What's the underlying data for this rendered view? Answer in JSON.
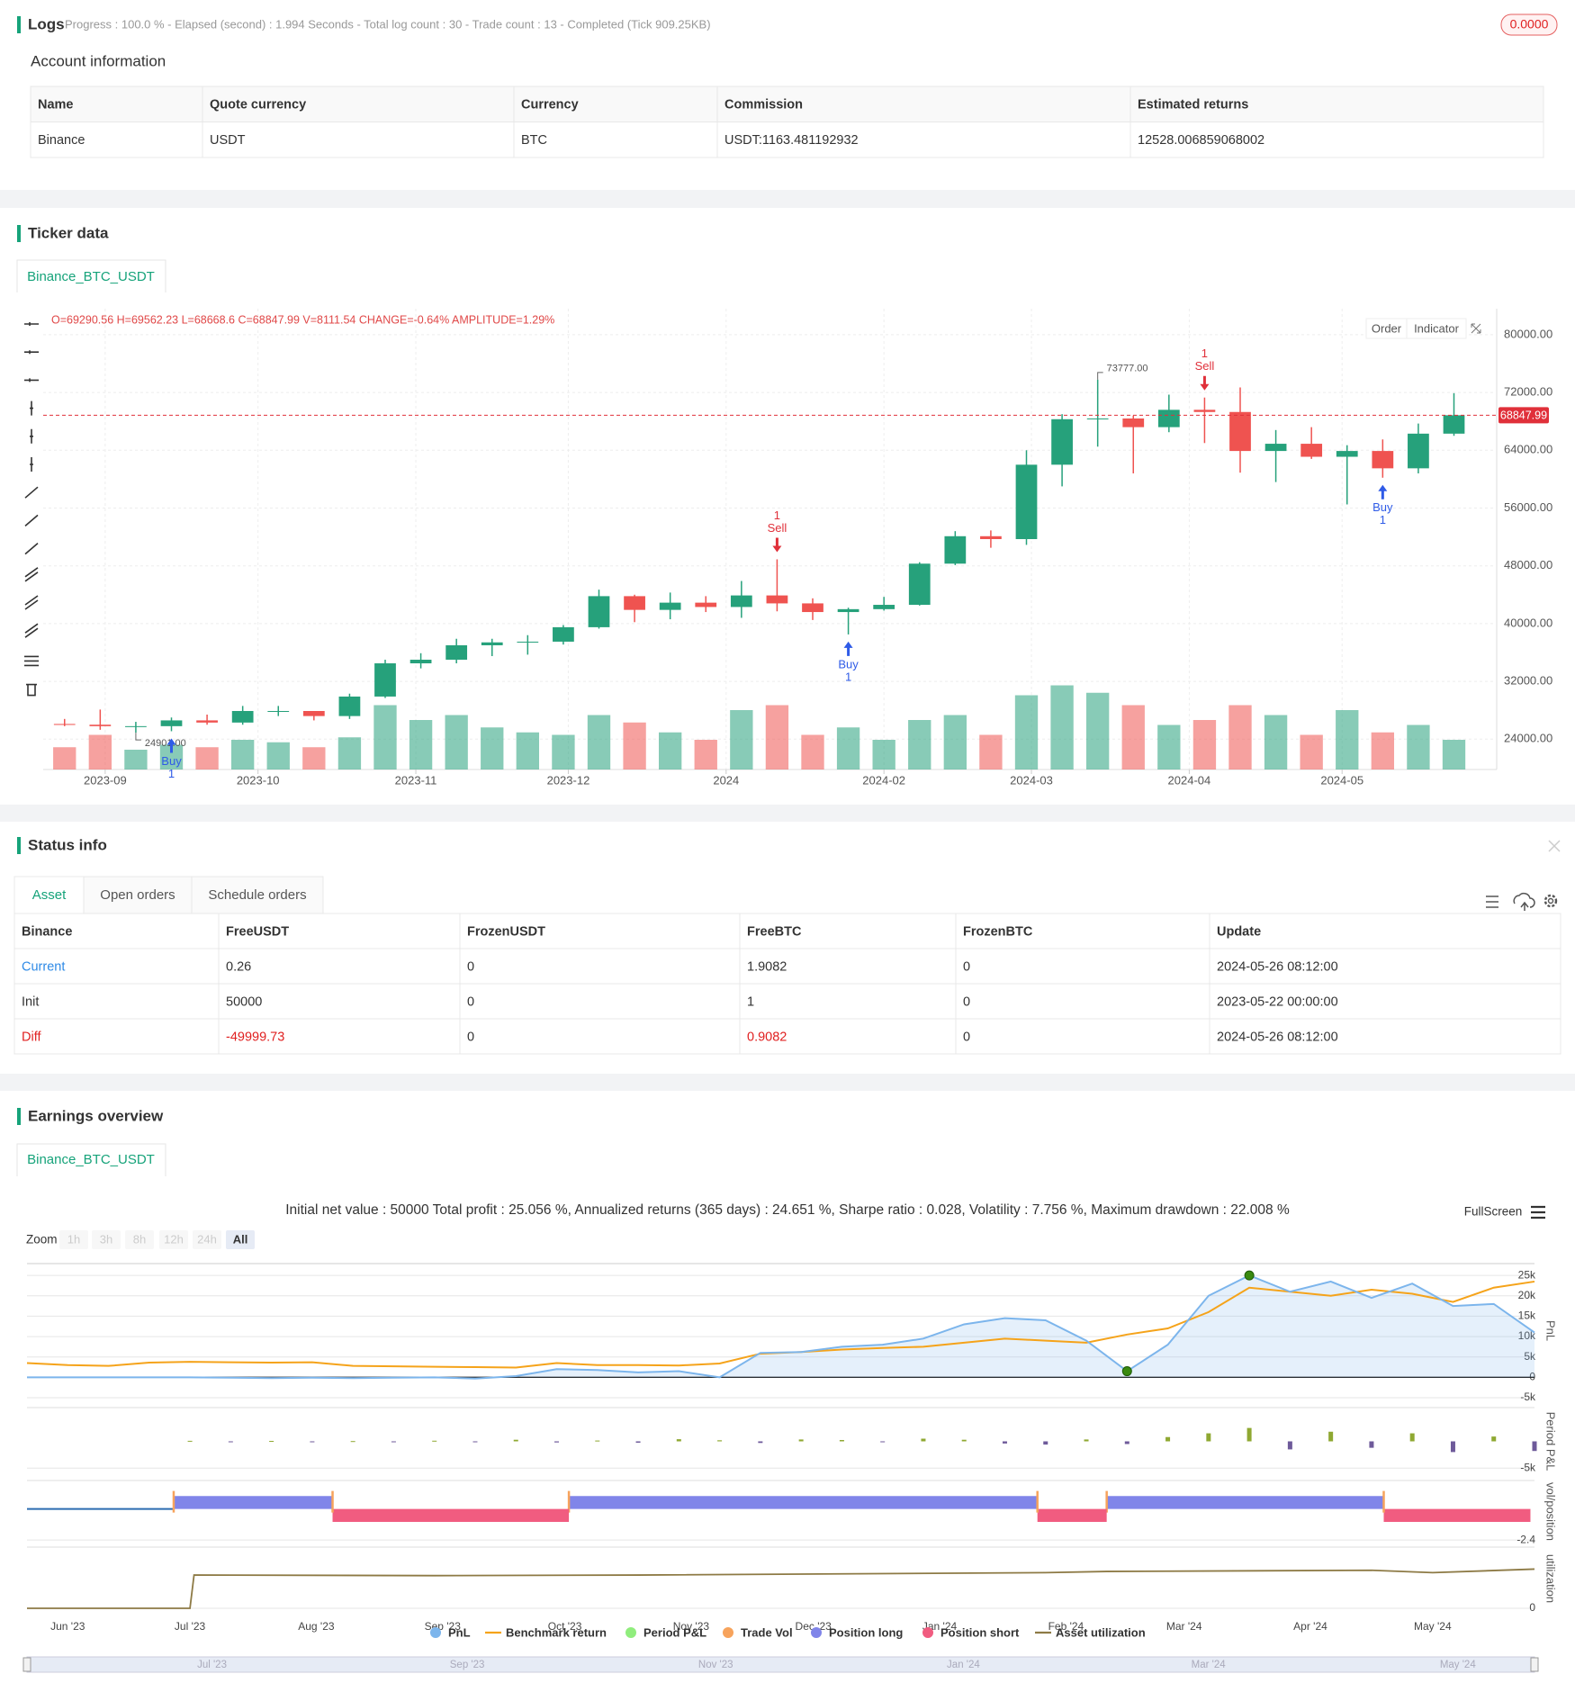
{
  "logs": {
    "title": "Logs",
    "progress": "Progress : 100.0 % - Elapsed (second) : 1.994  Seconds - Total log count : 30 - Trade count : 13 - Completed (Tick 909.25KB)",
    "badge": "0.0000"
  },
  "account": {
    "title": "Account information",
    "columns": [
      "Name",
      "Quote currency",
      "Currency",
      "Commission",
      "Estimated returns"
    ],
    "rows": [
      [
        "Binance",
        "USDT",
        "BTC",
        "USDT:1163.481192932",
        "12528.006859068002"
      ]
    ]
  },
  "ticker": {
    "title": "Ticker data",
    "tab": "Binance_BTC_USDT",
    "buttons": [
      "Order",
      "Indicator"
    ]
  },
  "status": {
    "title": "Status info",
    "tabs": [
      "Asset",
      "Open orders",
      "Schedule orders"
    ],
    "columns": [
      "Binance",
      "FreeUSDT",
      "FrozenUSDT",
      "FreeBTC",
      "FrozenBTC",
      "Update"
    ],
    "rows": [
      [
        "Current",
        "0.26",
        "0",
        "1.9082",
        "0",
        "2024-05-26 08:12:00"
      ],
      [
        "Init",
        "50000",
        "0",
        "1",
        "0",
        "2023-05-22 00:00:00"
      ],
      [
        "Diff",
        "-49999.73",
        "0",
        "0.9082",
        "0",
        "2024-05-26 08:12:00"
      ]
    ]
  },
  "earnings": {
    "title": "Earnings overview",
    "tab": "Binance_BTC_USDT",
    "summary": "Initial net value : 50000 Total profit : 25.056 %, Annualized returns (365 days) : 24.651 %, Sharpe ratio : 0.028, Volatility : 7.756 %, Maximum drawdown : 22.008 %",
    "fullscreen": "FullScreen",
    "zoom": {
      "label": "Zoom",
      "buttons": [
        "1h",
        "3h",
        "8h",
        "12h",
        "24h",
        "All"
      ],
      "active": "All"
    },
    "navigator": [
      {
        "value": 40,
        "label": "Jul '23"
      },
      {
        "value": 102,
        "label": "Sep '23"
      },
      {
        "value": 163,
        "label": "Nov '23"
      },
      {
        "value": 224,
        "label": "Jan '24"
      },
      {
        "value": 284,
        "label": "Mar '24"
      },
      {
        "value": 345,
        "label": "May '24"
      }
    ]
  },
  "chart_data": [
    {
      "type": "candlestick",
      "info": "O=69290.56 H=69562.23 L=68668.6 C=68847.99 V=8111.54 CHANGE=-0.64% AMPLITUDE=1.29%",
      "categories": [
        null,
        null,
        null,
        null,
        null,
        null,
        null,
        null,
        null,
        null,
        null,
        null,
        null,
        null,
        null,
        null,
        null,
        null,
        null,
        null,
        null,
        null,
        null,
        null,
        null,
        null,
        null,
        null,
        null,
        null,
        null,
        null,
        null,
        null,
        null,
        null,
        null,
        null,
        null,
        null
      ],
      "open": [
        26100,
        26000,
        25800,
        25800,
        26600,
        26300,
        27900,
        27900,
        27200,
        29900,
        34500,
        35000,
        37000,
        37400,
        37500,
        39500,
        43800,
        41900,
        42900,
        42300,
        43900,
        42800,
        41600,
        42000,
        42600,
        48300,
        52100,
        51700,
        62000,
        68300,
        68400,
        67200,
        69600,
        69300,
        63900,
        64900,
        63100,
        63900,
        61500,
        66300
      ],
      "high": [
        26800,
        28100,
        26400,
        27000,
        27400,
        28600,
        28600,
        27900,
        30300,
        35000,
        35900,
        37900,
        37900,
        38400,
        39800,
        44700,
        44000,
        44300,
        43800,
        45900,
        48900,
        43500,
        42200,
        43700,
        48500,
        52800,
        52900,
        64000,
        69000,
        73777,
        68800,
        71700,
        71300,
        72700,
        66800,
        67200,
        64700,
        65500,
        67700,
        71900
      ],
      "low": [
        25800,
        25300,
        24901,
        25100,
        26000,
        26000,
        27200,
        26600,
        26800,
        29700,
        33800,
        34500,
        35500,
        35700,
        37100,
        39300,
        40200,
        40600,
        41600,
        40800,
        41700,
        40500,
        38500,
        41800,
        42500,
        48100,
        50500,
        50900,
        59000,
        64500,
        60800,
        66500,
        65000,
        60900,
        59600,
        62800,
        56500,
        60200,
        60800,
        66000
      ],
      "close": [
        26000,
        25800,
        25800,
        26600,
        26300,
        27900,
        27900,
        27200,
        29900,
        34500,
        35000,
        37000,
        37400,
        37500,
        39500,
        43800,
        41900,
        42900,
        42300,
        43900,
        42800,
        41600,
        42000,
        42600,
        48300,
        52100,
        51700,
        62000,
        68300,
        68400,
        67200,
        69600,
        69300,
        63900,
        64900,
        63100,
        63900,
        61500,
        66300,
        68848
      ],
      "volume": [
        9000,
        14000,
        8000,
        10000,
        9000,
        12000,
        11000,
        9000,
        13000,
        26000,
        20000,
        22000,
        17000,
        15000,
        14000,
        22000,
        19000,
        15000,
        12000,
        24000,
        26000,
        14000,
        17000,
        12000,
        20000,
        22000,
        14000,
        30000,
        34000,
        31000,
        26000,
        18000,
        20000,
        26000,
        22000,
        14000,
        24000,
        15000,
        18000,
        12000
      ],
      "volume_lim": [
        0,
        40000
      ],
      "up_color": "#26a17b",
      "down_color": "#ef5350",
      "xlim": [
        -0.6,
        40.2
      ],
      "xticks": [
        {
          "value": 1.14,
          "label": "2023-09"
        },
        {
          "value": 5.43,
          "label": "2023-10"
        },
        {
          "value": 9.86,
          "label": "2023-11"
        },
        {
          "value": 14.14,
          "label": "2023-12"
        },
        {
          "value": 18.57,
          "label": "2024"
        },
        {
          "value": 23,
          "label": "2024-02"
        },
        {
          "value": 27.14,
          "label": "2024-03"
        },
        {
          "value": 31.57,
          "label": "2024-04"
        },
        {
          "value": 35.86,
          "label": "2024-05"
        }
      ],
      "ylim": [
        19800,
        83600
      ],
      "yticks": [
        {
          "value": 24000,
          "label": "24000.00"
        },
        {
          "value": 32000,
          "label": "32000.00"
        },
        {
          "value": 40000,
          "label": "40000.00"
        },
        {
          "value": 48000,
          "label": "48000.00"
        },
        {
          "value": 56000,
          "label": "56000.00"
        },
        {
          "value": 64000,
          "label": "64000.00"
        },
        {
          "value": 72000,
          "label": "72000.00"
        },
        {
          "value": 80000,
          "label": "80000.00"
        }
      ],
      "grid": true,
      "last_price": {
        "value": 68847.99,
        "label": "68847.99"
      },
      "max_label": {
        "value": 73777,
        "label": "73777.00",
        "candle": 29
      },
      "min_label": {
        "value": 24901,
        "label": "24901.00",
        "candle": 2
      },
      "trades": [
        {
          "side": "Buy",
          "qty": 1,
          "candle": 3
        },
        {
          "side": "Sell",
          "qty": 1,
          "candle": 20
        },
        {
          "side": "Buy",
          "qty": 1,
          "candle": 22
        },
        {
          "side": "Sell",
          "qty": 1,
          "candle": 32
        },
        {
          "side": "Buy",
          "qty": 1,
          "candle": 37
        }
      ],
      "buy_color": "#2f5be7",
      "sell_color": "#e0303a"
    },
    {
      "type": "line",
      "ylabel": "PnL",
      "x": [
        0,
        10,
        20,
        30,
        40,
        50,
        60,
        70,
        80,
        90,
        100,
        110,
        120,
        130,
        140,
        150,
        160,
        170,
        180,
        190,
        200,
        210,
        220,
        230,
        240,
        250,
        260,
        270,
        280,
        290,
        300,
        310,
        320,
        330,
        340,
        350,
        360,
        370
      ],
      "series": [
        {
          "name": "PnL",
          "color": "#7cb5ec",
          "values": [
            0,
            0,
            0,
            0,
            0,
            -100,
            -200,
            -100,
            -200,
            -100,
            0,
            -300,
            300,
            2000,
            1800,
            1200,
            1500,
            0,
            6000,
            6200,
            7500,
            8000,
            9500,
            13000,
            14500,
            14000,
            9000,
            1500,
            8000,
            20000,
            25000,
            21000,
            23500,
            19500,
            23000,
            17500,
            18000,
            11000
          ]
        },
        {
          "name": "Benchmark return",
          "color": "#f5a31a",
          "values": [
            3500,
            3000,
            2800,
            3600,
            3800,
            3700,
            3600,
            3700,
            2800,
            2700,
            2600,
            2500,
            2400,
            3500,
            3000,
            3000,
            2900,
            3400,
            5800,
            6200,
            6800,
            7200,
            7500,
            8500,
            9500,
            9000,
            8500,
            10500,
            12000,
            16000,
            22000,
            21000,
            20000,
            21500,
            20500,
            18500,
            22000,
            23500
          ]
        }
      ],
      "xlim": [
        0,
        370
      ],
      "xticks": [
        {
          "value": 10,
          "label": "Jun '23"
        },
        {
          "value": 40,
          "label": "Jul '23"
        },
        {
          "value": 71,
          "label": "Aug '23"
        },
        {
          "value": 102,
          "label": "Sep '23"
        },
        {
          "value": 132,
          "label": "Oct '23"
        },
        {
          "value": 163,
          "label": "Nov '23"
        },
        {
          "value": 193,
          "label": "Dec '23"
        },
        {
          "value": 224,
          "label": "Jan '24"
        },
        {
          "value": 255,
          "label": "Feb '24"
        },
        {
          "value": 284,
          "label": "Mar '24"
        },
        {
          "value": 315,
          "label": "Apr '24"
        },
        {
          "value": 345,
          "label": "May '24"
        }
      ],
      "ylim": [
        -5000,
        27900
      ],
      "yticks": [
        {
          "value": 25000,
          "label": "25k"
        },
        {
          "value": 20000,
          "label": "20k"
        },
        {
          "value": 15000,
          "label": "15k"
        },
        {
          "value": 10000,
          "label": "10k"
        },
        {
          "value": 5000,
          "label": "5k"
        },
        0,
        {
          "value": -5000,
          "label": "-5k"
        }
      ],
      "grid": true,
      "extrema_color": "#3a8a10"
    },
    {
      "type": "bar",
      "ylabel": "Period P&L",
      "name": "Period P&L",
      "color": "#90ed7d",
      "pos_color": "#8fa832",
      "neg_color": "#6e5a9a",
      "x": [
        40,
        50,
        60,
        70,
        80,
        90,
        100,
        110,
        120,
        130,
        140,
        150,
        160,
        170,
        180,
        190,
        200,
        210,
        220,
        230,
        240,
        250,
        260,
        270,
        280,
        290,
        300,
        310,
        320,
        330,
        340,
        350,
        360,
        370
      ],
      "values": [
        100,
        -50,
        80,
        -100,
        50,
        -80,
        120,
        -60,
        300,
        -200,
        150,
        -250,
        400,
        200,
        -300,
        350,
        250,
        -150,
        500,
        300,
        -400,
        -600,
        350,
        -500,
        800,
        1500,
        2500,
        -1500,
        1800,
        -1200,
        1500,
        -2000,
        900,
        -1800
      ],
      "xlim": [
        0,
        370
      ],
      "ylim": [
        -6300,
        6300
      ],
      "yticks": [
        {
          "value": -5000,
          "label": "-5k"
        }
      ]
    },
    {
      "type": "position",
      "ylabel": "vol/position",
      "trade_vol": {
        "name": "Trade Vol",
        "color": "#f7a35c"
      },
      "series": [
        {
          "name": "Position long",
          "color": "#8085e9",
          "value": 1,
          "segments": [
            [
              36,
              75
            ],
            [
              133,
              248
            ],
            [
              265,
              333
            ]
          ]
        },
        {
          "name": "Position short",
          "color": "#f15c80",
          "value": -1,
          "segments": [
            [
              75,
              133
            ],
            [
              248,
              265
            ],
            [
              333,
              369
            ]
          ]
        }
      ],
      "xlim": [
        0,
        370
      ],
      "ylim": [
        -2.6,
        2.2
      ],
      "yticks": [
        -2.4
      ]
    },
    {
      "type": "line",
      "ylabel": "utilization",
      "series": [
        {
          "name": "Asset utilization",
          "color": "#8d7a45",
          "values": [
            0,
            0,
            0.56,
            0.55,
            0.56,
            0.6,
            0.62,
            0.64,
            0.6,
            0.66
          ]
        }
      ],
      "x": [
        0,
        40,
        41,
        100,
        150,
        250,
        265,
        330,
        345,
        370
      ],
      "xlim": [
        0,
        370
      ],
      "ylim": [
        0,
        1
      ],
      "yticks": [
        0
      ]
    }
  ]
}
